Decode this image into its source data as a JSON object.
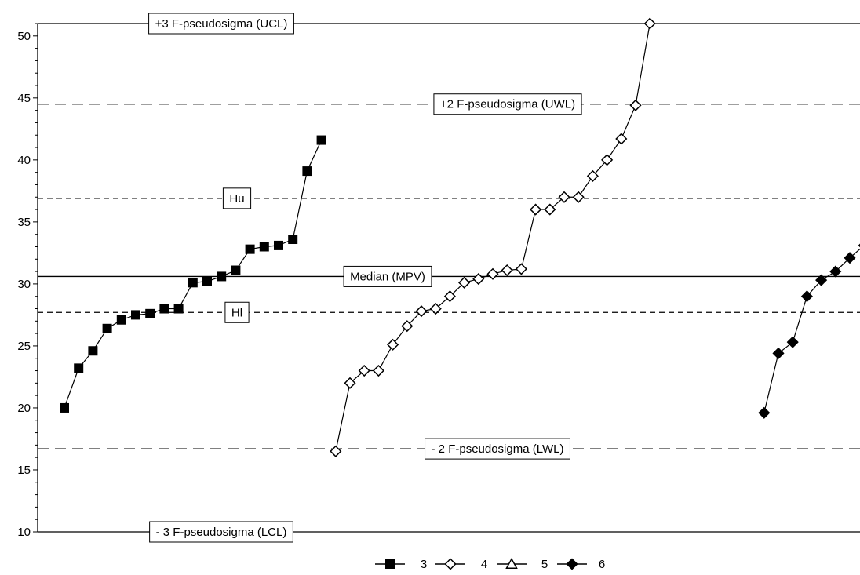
{
  "chart_data": {
    "type": "line",
    "title": "",
    "xlabel": "",
    "ylabel": "",
    "ylim": [
      10,
      51
    ],
    "yticks": [
      10,
      15,
      20,
      25,
      30,
      35,
      40,
      45,
      50
    ],
    "grid": false,
    "legend_position": "bottom",
    "reference_lines": [
      {
        "key": "ucl",
        "label": "+3 F-pseudosigma (UCL)",
        "value": 51.0,
        "style": "solid"
      },
      {
        "key": "uwl",
        "label": "+2 F-pseudosigma (UWL)",
        "value": 44.5,
        "style": "long-dash"
      },
      {
        "key": "hu",
        "label": "Hu",
        "value": 36.9,
        "style": "short-dash"
      },
      {
        "key": "median",
        "label": "Median (MPV)",
        "value": 30.6,
        "style": "solid"
      },
      {
        "key": "hl",
        "label": "Hl",
        "value": 27.7,
        "style": "short-dash"
      },
      {
        "key": "lwl",
        "label": "- 2 F-pseudosigma (LWL)",
        "value": 16.7,
        "style": "long-dash"
      },
      {
        "key": "lcl",
        "label": "- 3 F-pseudosigma (LCL)",
        "value": 10.0,
        "style": "solid"
      }
    ],
    "series": [
      {
        "name": "3",
        "marker": "filled-square",
        "start_index": 1,
        "values": [
          20.0,
          23.2,
          24.6,
          26.4,
          27.1,
          27.5,
          27.6,
          28.0,
          28.0,
          30.1,
          30.2,
          30.6,
          31.1,
          32.8,
          33.0,
          33.1,
          33.6,
          39.1,
          41.6
        ]
      },
      {
        "name": "4",
        "marker": "open-diamond",
        "start_index": 20,
        "values": [
          16.5,
          22.0,
          23.0,
          23.0,
          25.1,
          26.6,
          27.8,
          28.0,
          29.0,
          30.1,
          30.4,
          30.8,
          31.1,
          31.2,
          36.0,
          36.0,
          37.0,
          37.0,
          38.7,
          40.0,
          41.7,
          44.4,
          51.0
        ]
      },
      {
        "name": "5",
        "marker": "open-triangle",
        "start_index": null,
        "values": []
      },
      {
        "name": "6",
        "marker": "filled-diamond",
        "start_index": 50,
        "values": [
          19.6,
          24.4,
          25.3,
          29.0,
          30.3,
          31.0,
          32.1,
          33.1
        ]
      }
    ]
  },
  "colors": {
    "line": "#000000",
    "background": "#ffffff"
  }
}
